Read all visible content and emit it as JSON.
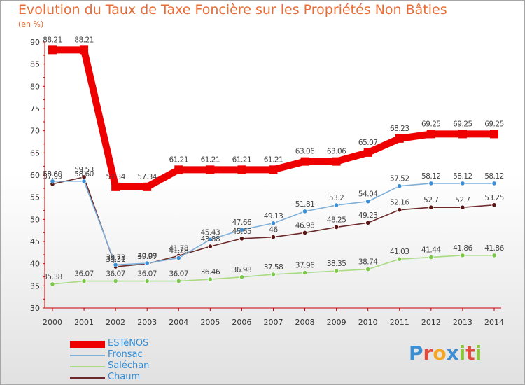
{
  "title": "Evolution du Taux de Taxe Foncière sur les Propriétés Non Bâties",
  "unit_label": "(en %)",
  "logo": {
    "text": "Proxiti",
    "letters": [
      {
        "ch": "P",
        "color": "#3d8fd1"
      },
      {
        "ch": "r",
        "color": "#e34b3c"
      },
      {
        "ch": "o",
        "color": "#f2a623"
      },
      {
        "ch": "x",
        "color": "#3d8fd1"
      },
      {
        "ch": "i",
        "color": "#8cc63e"
      },
      {
        "ch": "t",
        "color": "#e34b3c"
      },
      {
        "ch": "i",
        "color": "#8cc63e"
      }
    ]
  },
  "chart_data": {
    "type": "line",
    "x": [
      "2000",
      "2001",
      "2002",
      "2003",
      "2004",
      "2005",
      "2006",
      "2007",
      "2008",
      "2009",
      "2010",
      "2011",
      "2012",
      "2013",
      "2014"
    ],
    "ylim": [
      30,
      90
    ],
    "yticks": [
      30,
      35,
      40,
      45,
      50,
      55,
      60,
      65,
      70,
      75,
      80,
      85,
      90
    ],
    "grid": false,
    "legend_position": "bottom-left",
    "series": [
      {
        "name": "ESTéNOS",
        "color": "#ee0000",
        "marker": "#ee0000",
        "width": 10,
        "values": [
          88.21,
          88.21,
          57.34,
          57.34,
          61.21,
          61.21,
          61.21,
          61.21,
          63.06,
          63.06,
          65.07,
          68.23,
          69.25,
          69.25,
          69.25
        ],
        "labels": [
          "88.21",
          "88.21",
          "57.34",
          "57.34",
          "61.21",
          "61.21",
          "61.21",
          "61.21",
          "63.06",
          "63.06",
          "65.07",
          "68.23",
          "69.25",
          "69.25",
          "69.25"
        ]
      },
      {
        "name": "Fronsac",
        "color": "#7fb0d9",
        "marker": "#3a8fd8",
        "width": 1.6,
        "values": [
          58.6,
          58.6,
          39.73,
          40.09,
          41.28,
          45.43,
          47.66,
          49.13,
          51.81,
          53.2,
          54.04,
          57.52,
          58.12,
          58.12,
          58.12
        ],
        "labels": [
          "58.60",
          "58.60",
          "39.73",
          "40.09",
          "41.28",
          "45.43",
          "47.66",
          "49.13",
          "51.81",
          "53.2",
          "54.04",
          "57.52",
          "58.12",
          "58.12",
          "58.12"
        ]
      },
      {
        "name": "Saléchan",
        "color": "#a9db83",
        "marker": "#7bc84a",
        "width": 1.6,
        "values": [
          35.38,
          36.07,
          36.07,
          36.07,
          36.07,
          36.46,
          36.98,
          37.58,
          37.96,
          38.35,
          38.74,
          41.03,
          41.44,
          41.86,
          41.86
        ],
        "labels": [
          "35.38",
          "36.07",
          "36.07",
          "36.07",
          "36.07",
          "36.46",
          "36.98",
          "37.58",
          "37.96",
          "38.35",
          "38.74",
          "41.03",
          "41.44",
          "41.86",
          "41.86"
        ]
      },
      {
        "name": "Chaum",
        "color": "#6b2a2a",
        "marker": "#5a1414",
        "width": 1.6,
        "values": [
          57.99,
          59.53,
          39.31,
          39.97,
          41.78,
          43.88,
          45.65,
          46,
          46.98,
          48.25,
          49.23,
          52.16,
          52.7,
          52.7,
          53.25
        ],
        "labels": [
          "57.99",
          "59.53",
          "39.31",
          "39.97",
          "41.78",
          "43.88",
          "45.65",
          "46",
          "46.98",
          "48.25",
          "49.23",
          "52.16",
          "52.7",
          "52.7",
          "53.25"
        ]
      }
    ]
  }
}
